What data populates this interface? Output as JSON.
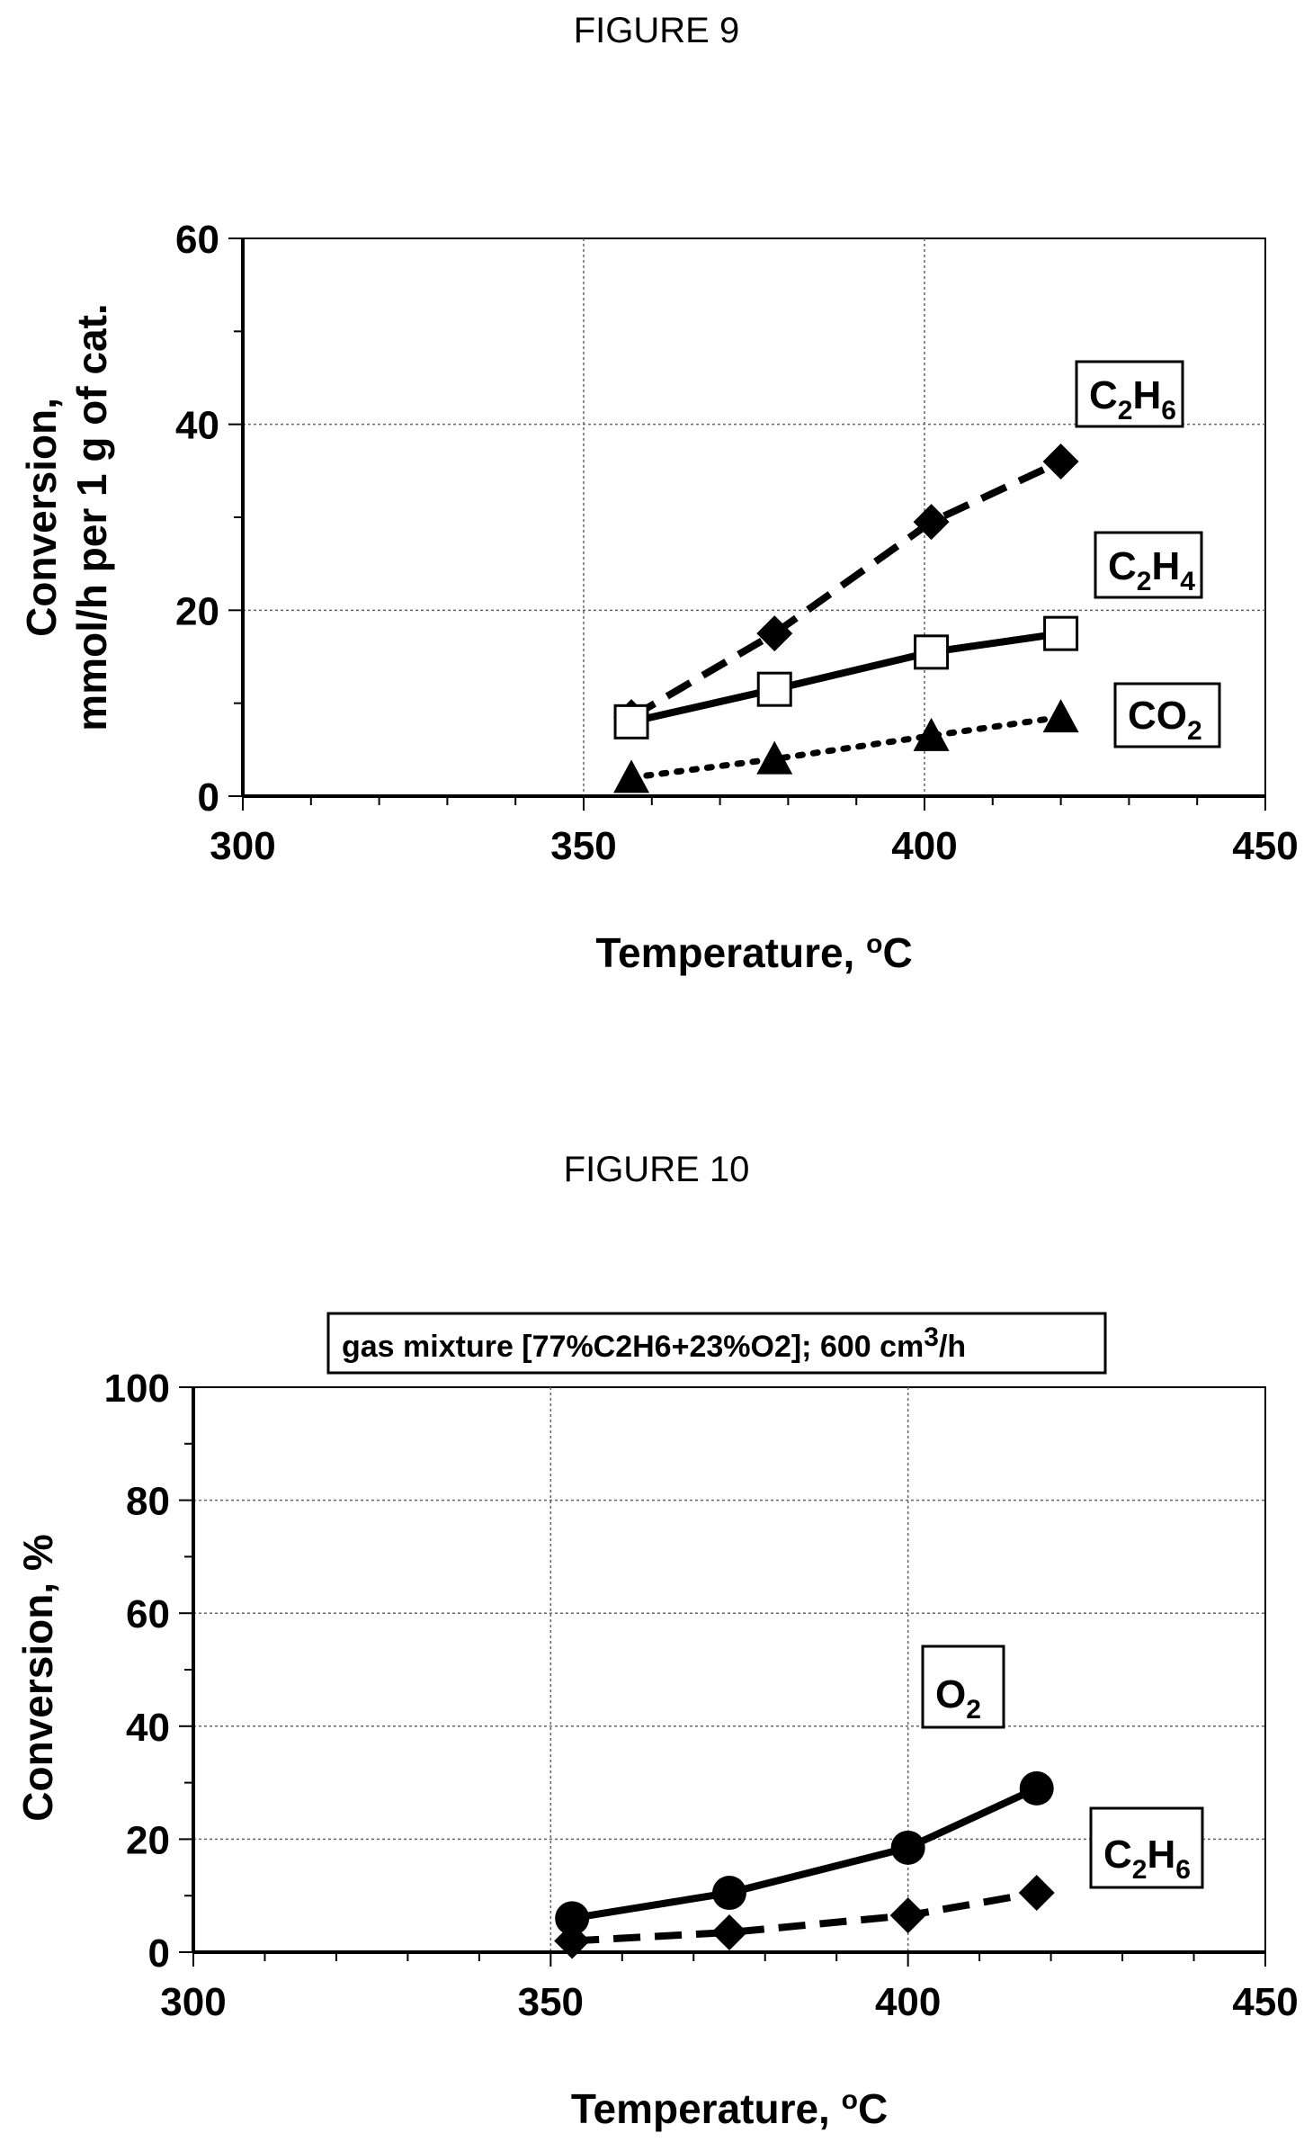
{
  "chart_data": [
    {
      "type": "line",
      "title": "FIGURE 9",
      "xlabel": "Temperature, oC",
      "ylabel_line1": "Conversion,",
      "ylabel_line2": "mmol/h per 1 g of cat.",
      "xlim": [
        300,
        450
      ],
      "ylim": [
        0,
        60
      ],
      "xticks": [
        "300",
        "350",
        "400",
        "450"
      ],
      "yticks": [
        "0",
        "20",
        "40",
        "60"
      ],
      "grid": true,
      "series": [
        {
          "name": "C2H6",
          "marker": "diamond",
          "line": "dashed",
          "x": [
            357,
            378,
            401,
            420
          ],
          "y": [
            8.5,
            17.5,
            29.5,
            36
          ]
        },
        {
          "name": "C2H4",
          "marker": "open-square",
          "line": "solid",
          "x": [
            357,
            378,
            401,
            420
          ],
          "y": [
            8,
            11.5,
            15.5,
            17.5
          ]
        },
        {
          "name": "CO2",
          "marker": "triangle",
          "line": "dotted",
          "x": [
            357,
            378,
            401,
            420
          ],
          "y": [
            2,
            4,
            6.5,
            8.5
          ]
        }
      ],
      "labels": {
        "c2h6": {
          "main": "C",
          "sub1": "2",
          "mid": "H",
          "sub2": "6"
        },
        "c2h4": {
          "main": "C",
          "sub1": "2",
          "mid": "H",
          "sub2": "4"
        },
        "co2": {
          "main": "CO",
          "sub1": "2"
        }
      }
    },
    {
      "type": "line",
      "title": "FIGURE 10",
      "annotation_main": "gas mixture [77%C2H6+23%O2]; 600 cm",
      "annotation_sup": "3",
      "annotation_tail": "/h",
      "xlabel": "Temperature, oC",
      "ylabel": "Conversion, %",
      "xlim": [
        300,
        450
      ],
      "ylim": [
        0,
        100
      ],
      "xticks": [
        "300",
        "350",
        "400",
        "450"
      ],
      "yticks": [
        "0",
        "20",
        "40",
        "60",
        "80",
        "100"
      ],
      "grid": true,
      "series": [
        {
          "name": "O2",
          "marker": "circle",
          "line": "solid",
          "x": [
            353,
            375,
            400,
            418
          ],
          "y": [
            6,
            10.5,
            18.5,
            29
          ]
        },
        {
          "name": "C2H6",
          "marker": "diamond",
          "line": "dashed",
          "x": [
            353,
            375,
            400,
            418
          ],
          "y": [
            2,
            3.5,
            6.5,
            10.5
          ]
        }
      ],
      "labels": {
        "o2": {
          "main": "O",
          "sub1": "2"
        },
        "c2h6": {
          "main": "C",
          "sub1": "2",
          "mid": "H",
          "sub2": "6"
        }
      }
    }
  ]
}
